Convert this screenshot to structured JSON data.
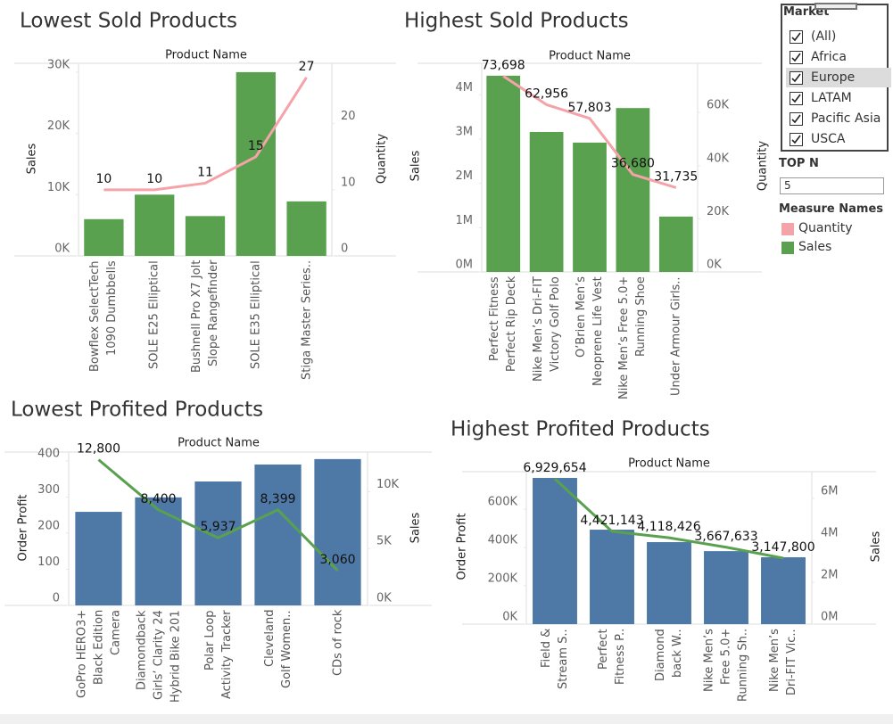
{
  "chart_data": [
    {
      "type": "bar",
      "title": "Lowest Sold Products",
      "x_label": "Product Name",
      "y_label": "Sales",
      "y2_label": "Quantity",
      "categories": [
        "Bowflex SelectTech\n1090 Dumbbells",
        "SOLE E25 Elliptical",
        "Bushnell Pro X7 Jolt\nSlope Rangefinder",
        "SOLE E35 Elliptical",
        "Stiga Master Series.."
      ],
      "series": [
        {
          "type": "bar",
          "color": "#59a14f",
          "values": [
            6000,
            10000,
            6500,
            30000,
            8900
          ]
        },
        {
          "type": "line",
          "axis": "y2",
          "color": "#f4a3a8",
          "values": [
            10,
            10,
            11,
            15,
            27
          ]
        }
      ],
      "ylim": [
        0,
        31300
      ],
      "yticks": [
        {
          "value": 0,
          "label": "0K"
        },
        {
          "value": 10000,
          "label": "10K"
        },
        {
          "value": 20000,
          "label": "20K"
        },
        {
          "value": 30000,
          "label": "30K"
        }
      ],
      "y2lim": [
        0,
        29
      ],
      "y2ticks": [
        0,
        10,
        20
      ]
    },
    {
      "type": "bar",
      "title": "Highest Sold Products",
      "x_label": "Product Name",
      "y_label": "Sales",
      "y2_label": "Quantity",
      "categories": [
        "Perfect Fitness\nPerfect Rip Deck",
        "Nike Men’s Dri-FIT\nVictory Golf Polo",
        "O’Brien Men’s\nNeoprene Life Vest",
        "Nike Men’s Free 5.0+\nRunning Shoe",
        "Under Armour Girls.."
      ],
      "series": [
        {
          "type": "bar",
          "color": "#59a14f",
          "values": [
            4430000,
            3160000,
            2920000,
            3700000,
            1250000
          ]
        },
        {
          "type": "line",
          "axis": "y2",
          "color": "#f4a3a8",
          "values": [
            73698,
            62956,
            57803,
            36680,
            31735
          ],
          "value_labels": [
            "73,698",
            "62,956",
            "57,803",
            "36,680",
            "31,735"
          ]
        }
      ],
      "ylim": [
        0,
        4690000
      ],
      "yticks": [
        {
          "value": 0,
          "label": "0M"
        },
        {
          "value": 1000000,
          "label": "1M"
        },
        {
          "value": 2000000,
          "label": "2M"
        },
        {
          "value": 3000000,
          "label": "3M"
        },
        {
          "value": 4000000,
          "label": "4M"
        }
      ],
      "y2lim": [
        0,
        78200
      ],
      "y2ticks": [
        {
          "value": 0,
          "label": "0K"
        },
        {
          "value": 20000,
          "label": "20K"
        },
        {
          "value": 40000,
          "label": "40K"
        },
        {
          "value": 60000,
          "label": "60K"
        }
      ]
    },
    {
      "type": "bar",
      "title": "Lowest Profited Products",
      "x_label": "Product Name",
      "y_label": "Order Profit",
      "y2_label": "Sales",
      "categories": [
        "GoPro HERO3+\nBlack Edition\nCamera",
        "Diamondback\nGirls’ Clarity 24\nHybrid Bike 201",
        "Polar Loop\nActivity Tracker",
        "Cleveland\nGolf Women..",
        "CDs of rock"
      ],
      "series": [
        {
          "type": "bar",
          "color": "#4e79a7",
          "values": [
            259,
            299,
            343,
            390,
            405
          ]
        },
        {
          "type": "line",
          "axis": "y2",
          "color": "#59a14f",
          "values": [
            12800,
            8400,
            5937,
            8399,
            3060
          ],
          "value_labels": [
            "12,800",
            "8,400",
            "5,937",
            "8,399",
            "3,060"
          ]
        }
      ],
      "ylim": [
        0,
        422
      ],
      "yticks": [
        0,
        100,
        200,
        300,
        400
      ],
      "y2lim": [
        0,
        13400
      ],
      "y2ticks": [
        {
          "value": 0,
          "label": "0K"
        },
        {
          "value": 5000,
          "label": "5K"
        },
        {
          "value": 10000,
          "label": "10K"
        }
      ]
    },
    {
      "type": "bar",
      "title": "Highest Profited Products",
      "x_label": "Product Name",
      "y_label": "Order Profit",
      "y2_label": "Sales",
      "categories": [
        "Field &\nStream S..",
        "Perfect\nFitness P..",
        "Diamond\nback W..",
        "Nike Men’s\nFree 5.0+\nRunning Sh..",
        "Nike Men’s\nDri-FIT Vic.."
      ],
      "series": [
        {
          "type": "bar",
          "color": "#4e79a7",
          "values": [
            763000,
            493000,
            428000,
            381000,
            349000
          ]
        },
        {
          "type": "line",
          "axis": "y2",
          "color": "#59a14f",
          "values": [
            6929654,
            4421143,
            4118426,
            3667633,
            3147800
          ],
          "value_labels": [
            "6,929,654",
            "4,421,143",
            "4,118,426",
            "3,667,633",
            "3,147,800"
          ]
        }
      ],
      "ylim": [
        0,
        791000
      ],
      "yticks": [
        {
          "value": 0,
          "label": "0K"
        },
        {
          "value": 200000,
          "label": "200K"
        },
        {
          "value": 400000,
          "label": "400K"
        },
        {
          "value": 600000,
          "label": "600K"
        }
      ],
      "y2lim": [
        0,
        7230000
      ],
      "y2ticks": [
        {
          "value": 0,
          "label": "0M"
        },
        {
          "value": 2000000,
          "label": "2M"
        },
        {
          "value": 4000000,
          "label": "4M"
        },
        {
          "value": 6000000,
          "label": "6M"
        }
      ]
    }
  ],
  "market_filter": {
    "title": "Market",
    "options": [
      {
        "label": "(All)",
        "checked": true
      },
      {
        "label": "Africa",
        "checked": true
      },
      {
        "label": "Europe",
        "checked": true
      },
      {
        "label": "LATAM",
        "checked": true
      },
      {
        "label": "Pacific Asia",
        "checked": true
      },
      {
        "label": "USCA",
        "checked": true
      }
    ]
  },
  "top_n": {
    "label": "TOP N",
    "value": "5"
  },
  "legend": {
    "title": "Measure Names",
    "items": [
      {
        "name": "Quantity",
        "color": "#f4a3a8"
      },
      {
        "name": "Sales",
        "color": "#59a14f"
      }
    ]
  }
}
